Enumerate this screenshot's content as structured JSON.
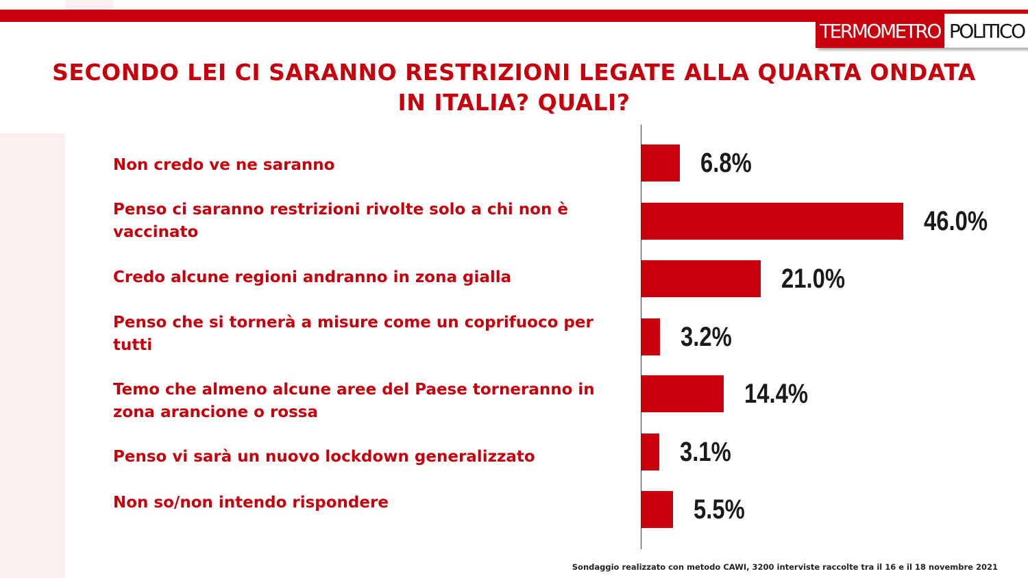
{
  "brand": {
    "logo_part1": "TERMOMETRO",
    "logo_part2": "POLITICO",
    "accent_color": "#c8000b"
  },
  "chart_data": {
    "type": "bar",
    "orientation": "horizontal",
    "title": "SECONDO LEI CI SARANNO RESTRIZIONI LEGATE ALLA QUARTA ONDATA IN ITALIA? QUALI?",
    "categories": [
      "Non credo ve ne saranno",
      "Penso ci saranno restrizioni rivolte solo a chi non è vaccinato",
      "Credo alcune regioni andranno in zona gialla",
      "Penso che si tornerà a misure come un coprifuoco per tutti",
      "Temo che almeno alcune aree del Paese torneranno in zona arancione o rossa",
      "Penso vi sarà  un nuovo lockdown generalizzato",
      "Non so/non intendo rispondere"
    ],
    "values": [
      6.8,
      46.0,
      21.0,
      3.2,
      14.4,
      3.1,
      5.5
    ],
    "value_labels": [
      "6.8%",
      "46.0%",
      "21.0%",
      "3.2%",
      "14.4%",
      "3.1%",
      "5.5%"
    ],
    "unit": "%",
    "bar_color": "#c8000b",
    "grid": false,
    "legend": "none"
  },
  "footnote": "Sondaggio realizzato con metodo CAWI, 3200 interviste raccolte tra il 16 e il 18 novembre 2021"
}
